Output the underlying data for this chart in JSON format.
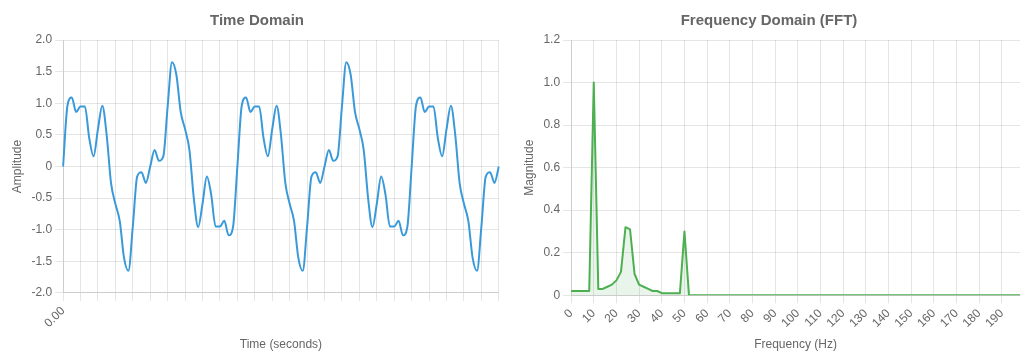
{
  "chart_data": [
    {
      "type": "line",
      "title": "Time Domain",
      "xlabel": "Time (seconds)",
      "ylabel": "Amplitude",
      "marker": "none",
      "grid": true,
      "categories": [
        "0.00",
        null,
        null,
        null,
        null,
        null,
        null,
        null,
        null,
        null,
        null,
        null,
        null,
        null,
        null,
        null,
        null,
        null,
        null,
        null,
        null,
        null,
        null,
        null,
        null,
        null,
        null,
        null,
        null,
        null,
        null,
        null,
        null,
        null,
        null,
        null,
        null,
        null,
        null,
        null,
        null,
        null,
        null,
        null,
        null,
        null,
        null,
        null,
        null,
        null,
        null,
        null,
        null,
        null,
        null,
        null,
        null,
        null,
        null,
        null,
        null,
        null,
        null,
        null,
        null,
        null,
        null,
        null,
        null,
        null,
        null,
        null,
        null,
        null,
        null,
        null,
        null,
        null,
        null,
        null,
        null,
        null,
        null,
        null,
        null,
        null,
        null,
        null,
        null,
        null,
        null,
        null,
        null,
        null,
        null,
        null,
        null,
        null,
        null,
        null,
        null
      ],
      "series": [
        {
          "color": "#3a9ad9",
          "values": [
            0,
            0.96,
            1.09,
            0.86,
            0.95,
            0.95,
            0.45,
            0.16,
            0.59,
            0.96,
            0.5,
            -0.26,
            -0.59,
            -0.86,
            -1.45,
            -1.65,
            -0.95,
            -0.16,
            -0.09,
            -0.26,
            0,
            0.26,
            0.09,
            0.16,
            0.95,
            1.65,
            1.45,
            0.86,
            0.59,
            0.26,
            -0.5,
            -0.96,
            -0.59,
            -0.16,
            -0.45,
            -0.95,
            -0.95,
            -0.86,
            -1.09,
            -0.96,
            0,
            0.96,
            1.09,
            0.86,
            0.95,
            0.95,
            0.45,
            0.16,
            0.59,
            0.96,
            0.5,
            -0.26,
            -0.59,
            -0.86,
            -1.45,
            -1.65,
            -0.95,
            -0.16,
            -0.09,
            -0.26,
            0,
            0.26,
            0.09,
            0.16,
            0.95,
            1.65,
            1.45,
            0.86,
            0.59,
            0.26,
            -0.5,
            -0.96,
            -0.59,
            -0.16,
            -0.45,
            -0.95,
            -0.95,
            -0.86,
            -1.09,
            -0.96,
            0,
            0.96,
            1.09,
            0.86,
            0.95,
            0.95,
            0.45,
            0.16,
            0.59,
            0.96,
            0.5,
            -0.26,
            -0.59,
            -0.86,
            -1.45,
            -1.65,
            -0.95,
            -0.16,
            -0.09,
            -0.26,
            0
          ]
        }
      ],
      "ylim": [
        -2,
        2
      ],
      "yticks": [
        {
          "value": -2,
          "label": "-2.0"
        },
        {
          "value": -1.5,
          "label": "-1.5"
        },
        {
          "value": -1,
          "label": "-1.0"
        },
        {
          "value": -0.5,
          "label": "-0.5"
        },
        0,
        {
          "value": 0.5,
          "label": "0.5"
        },
        {
          "value": 1,
          "label": "1.0"
        },
        {
          "value": 1.5,
          "label": "1.5"
        },
        {
          "value": 2,
          "label": "2.0"
        }
      ]
    },
    {
      "type": "area",
      "title": "Frequency Domain (FFT)",
      "xlabel": "Frequency (Hz)",
      "ylabel": "Magnitude",
      "marker": "none",
      "grid": true,
      "x": [
        0,
        2,
        4,
        6,
        8,
        10,
        12,
        14,
        16,
        18,
        20,
        22,
        24,
        26,
        28,
        30,
        32,
        34,
        36,
        38,
        40,
        42,
        44,
        46,
        48,
        50,
        52,
        54,
        56,
        58,
        60,
        70,
        80,
        90,
        100,
        120,
        140,
        160,
        180,
        198
      ],
      "series": [
        {
          "color": "#4caf50",
          "values": [
            0.02,
            0.02,
            0.02,
            0.02,
            0.02,
            1.0,
            0.03,
            0.03,
            0.04,
            0.05,
            0.07,
            0.11,
            0.32,
            0.31,
            0.1,
            0.05,
            0.04,
            0.03,
            0.02,
            0.02,
            0.01,
            0.01,
            0.01,
            0.01,
            0.01,
            0.3,
            0,
            0,
            0,
            0,
            0,
            0,
            0,
            0,
            0,
            0,
            0,
            0,
            0,
            0
          ]
        }
      ],
      "xlim": [
        0,
        198
      ],
      "xticks": [
        0,
        10,
        20,
        30,
        40,
        50,
        60,
        70,
        80,
        90,
        100,
        110,
        120,
        130,
        140,
        150,
        160,
        170,
        180,
        190
      ],
      "ylim": [
        0,
        1.2
      ],
      "yticks": [
        0,
        {
          "value": 0.2,
          "label": "0.2"
        },
        {
          "value": 0.4,
          "label": "0.4"
        },
        {
          "value": 0.6,
          "label": "0.6"
        },
        {
          "value": 0.8,
          "label": "0.8"
        },
        {
          "value": 1,
          "label": "1.0"
        },
        {
          "value": 1.2,
          "label": "1.2"
        }
      ]
    }
  ]
}
